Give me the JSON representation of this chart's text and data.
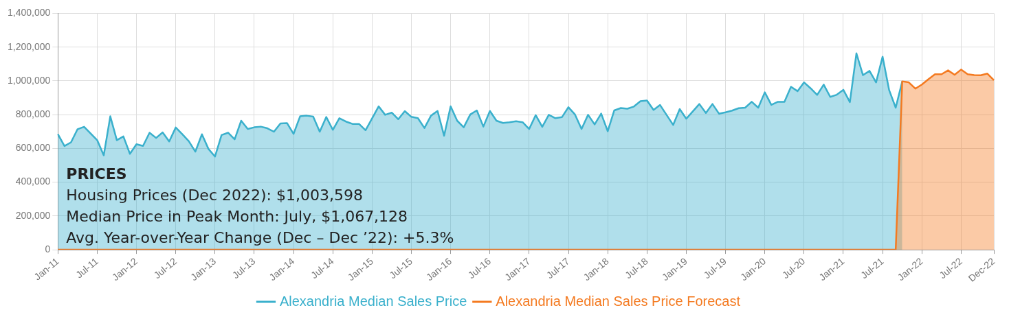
{
  "chart_data": {
    "type": "area",
    "categories": [
      "Jan-11",
      null,
      null,
      null,
      null,
      null,
      "Jul-11",
      null,
      null,
      null,
      null,
      null,
      "Jan-12",
      null,
      null,
      null,
      null,
      null,
      "Jul-12",
      null,
      null,
      null,
      null,
      null,
      "Jan-13",
      null,
      null,
      null,
      null,
      null,
      "Jul-13",
      null,
      null,
      null,
      null,
      null,
      "Jan-14",
      null,
      null,
      null,
      null,
      null,
      "Jul-14",
      null,
      null,
      null,
      null,
      null,
      "Jan-15",
      null,
      null,
      null,
      null,
      null,
      "Jul-15",
      null,
      null,
      null,
      null,
      null,
      "Jan-16",
      null,
      null,
      null,
      null,
      null,
      "Jul-16",
      null,
      null,
      null,
      null,
      null,
      "Jan-17",
      null,
      null,
      null,
      null,
      null,
      "Jul-17",
      null,
      null,
      null,
      null,
      null,
      "Jan-18",
      null,
      null,
      null,
      null,
      null,
      "Jul-18",
      null,
      null,
      null,
      null,
      null,
      "Jan-19",
      null,
      null,
      null,
      null,
      null,
      "Jul-19",
      null,
      null,
      null,
      null,
      null,
      "Jan-20",
      null,
      null,
      null,
      null,
      null,
      "Jul-20",
      null,
      null,
      null,
      null,
      null,
      "Jan-21",
      null,
      null,
      null,
      null,
      null,
      "Jul-21",
      null,
      null,
      null,
      null,
      null,
      "Jan-22",
      null,
      null,
      null,
      null,
      null,
      "Jul-22",
      null,
      null,
      null,
      null,
      "Dec-22"
    ],
    "series": [
      {
        "name": "Alexandria Median Sales Price",
        "color": "#3ab0cc",
        "values": [
          684000,
          614000,
          636000,
          714000,
          728000,
          688000,
          649000,
          559000,
          790000,
          649000,
          671000,
          568000,
          625000,
          615000,
          693000,
          662000,
          695000,
          641000,
          724000,
          684000,
          643000,
          581000,
          684000,
          597000,
          552000,
          679000,
          693000,
          654000,
          764000,
          715000,
          725000,
          729000,
          719000,
          699000,
          748000,
          750000,
          686000,
          790000,
          794000,
          788000,
          699000,
          786000,
          710000,
          779000,
          759000,
          745000,
          745000,
          708000,
          778000,
          849000,
          799000,
          812000,
          773000,
          821000,
          787000,
          779000,
          721000,
          794000,
          822000,
          675000,
          849000,
          764000,
          725000,
          801000,
          825000,
          729000,
          822000,
          764000,
          751000,
          755000,
          761000,
          755000,
          715000,
          797000,
          728000,
          799000,
          779000,
          785000,
          844000,
          801000,
          715000,
          799000,
          742000,
          806000,
          702000,
          825000,
          839000,
          835000,
          848000,
          880000,
          884000,
          828000,
          857000,
          798000,
          739000,
          833000,
          776000,
          819000,
          863000,
          810000,
          863000,
          806000,
          814000,
          824000,
          838000,
          841000,
          876000,
          841000,
          932000,
          858000,
          876000,
          876000,
          965000,
          939000,
          991000,
          956000,
          917000,
          978000,
          905000,
          918000,
          947000,
          874000,
          1163000,
          1034000,
          1059000,
          991000,
          1143000,
          945000,
          841000,
          997000,
          null,
          null,
          null,
          null,
          null,
          null,
          null,
          null,
          null,
          null,
          null,
          null,
          null,
          null
        ]
      },
      {
        "name": "Alexandria Median Sales Price Forecast",
        "color": "#f47a20",
        "values": [
          0,
          0,
          0,
          0,
          0,
          0,
          0,
          0,
          0,
          0,
          0,
          0,
          0,
          0,
          0,
          0,
          0,
          0,
          0,
          0,
          0,
          0,
          0,
          0,
          0,
          0,
          0,
          0,
          0,
          0,
          0,
          0,
          0,
          0,
          0,
          0,
          0,
          0,
          0,
          0,
          0,
          0,
          0,
          0,
          0,
          0,
          0,
          0,
          0,
          0,
          0,
          0,
          0,
          0,
          0,
          0,
          0,
          0,
          0,
          0,
          0,
          0,
          0,
          0,
          0,
          0,
          0,
          0,
          0,
          0,
          0,
          0,
          0,
          0,
          0,
          0,
          0,
          0,
          0,
          0,
          0,
          0,
          0,
          0,
          0,
          0,
          0,
          0,
          0,
          0,
          0,
          0,
          0,
          0,
          0,
          0,
          0,
          0,
          0,
          0,
          0,
          0,
          0,
          0,
          0,
          0,
          0,
          0,
          0,
          0,
          0,
          0,
          0,
          0,
          0,
          0,
          0,
          0,
          0,
          0,
          0,
          0,
          0,
          0,
          0,
          0,
          0,
          0,
          0,
          997000,
          991000,
          954000,
          978000,
          1010000,
          1039000,
          1039000,
          1062000,
          1036000,
          1067000,
          1039000,
          1034000,
          1033000,
          1043000,
          1004000
        ]
      }
    ],
    "ylim": [
      0,
      1400000
    ],
    "yticks": [
      0,
      {
        "value": 200000,
        "label": "200,000"
      },
      {
        "value": 400000,
        "label": "400,000"
      },
      {
        "value": 600000,
        "label": "600,000"
      },
      {
        "value": 800000,
        "label": "800,000"
      },
      {
        "value": 1000000,
        "label": "1,000,000"
      },
      {
        "value": 1200000,
        "label": "1,200,000"
      },
      {
        "value": 1400000,
        "label": "1,400,000"
      }
    ],
    "grid": true,
    "legend": "bottom",
    "annotations": [
      "PRICES",
      "Housing Prices (Dec 2022): $1,003,598",
      "Median Price in Peak Month: July, $1,067,128",
      "Avg. Year-over-Year Change (Dec – Dec ’22): +5.3%"
    ]
  }
}
